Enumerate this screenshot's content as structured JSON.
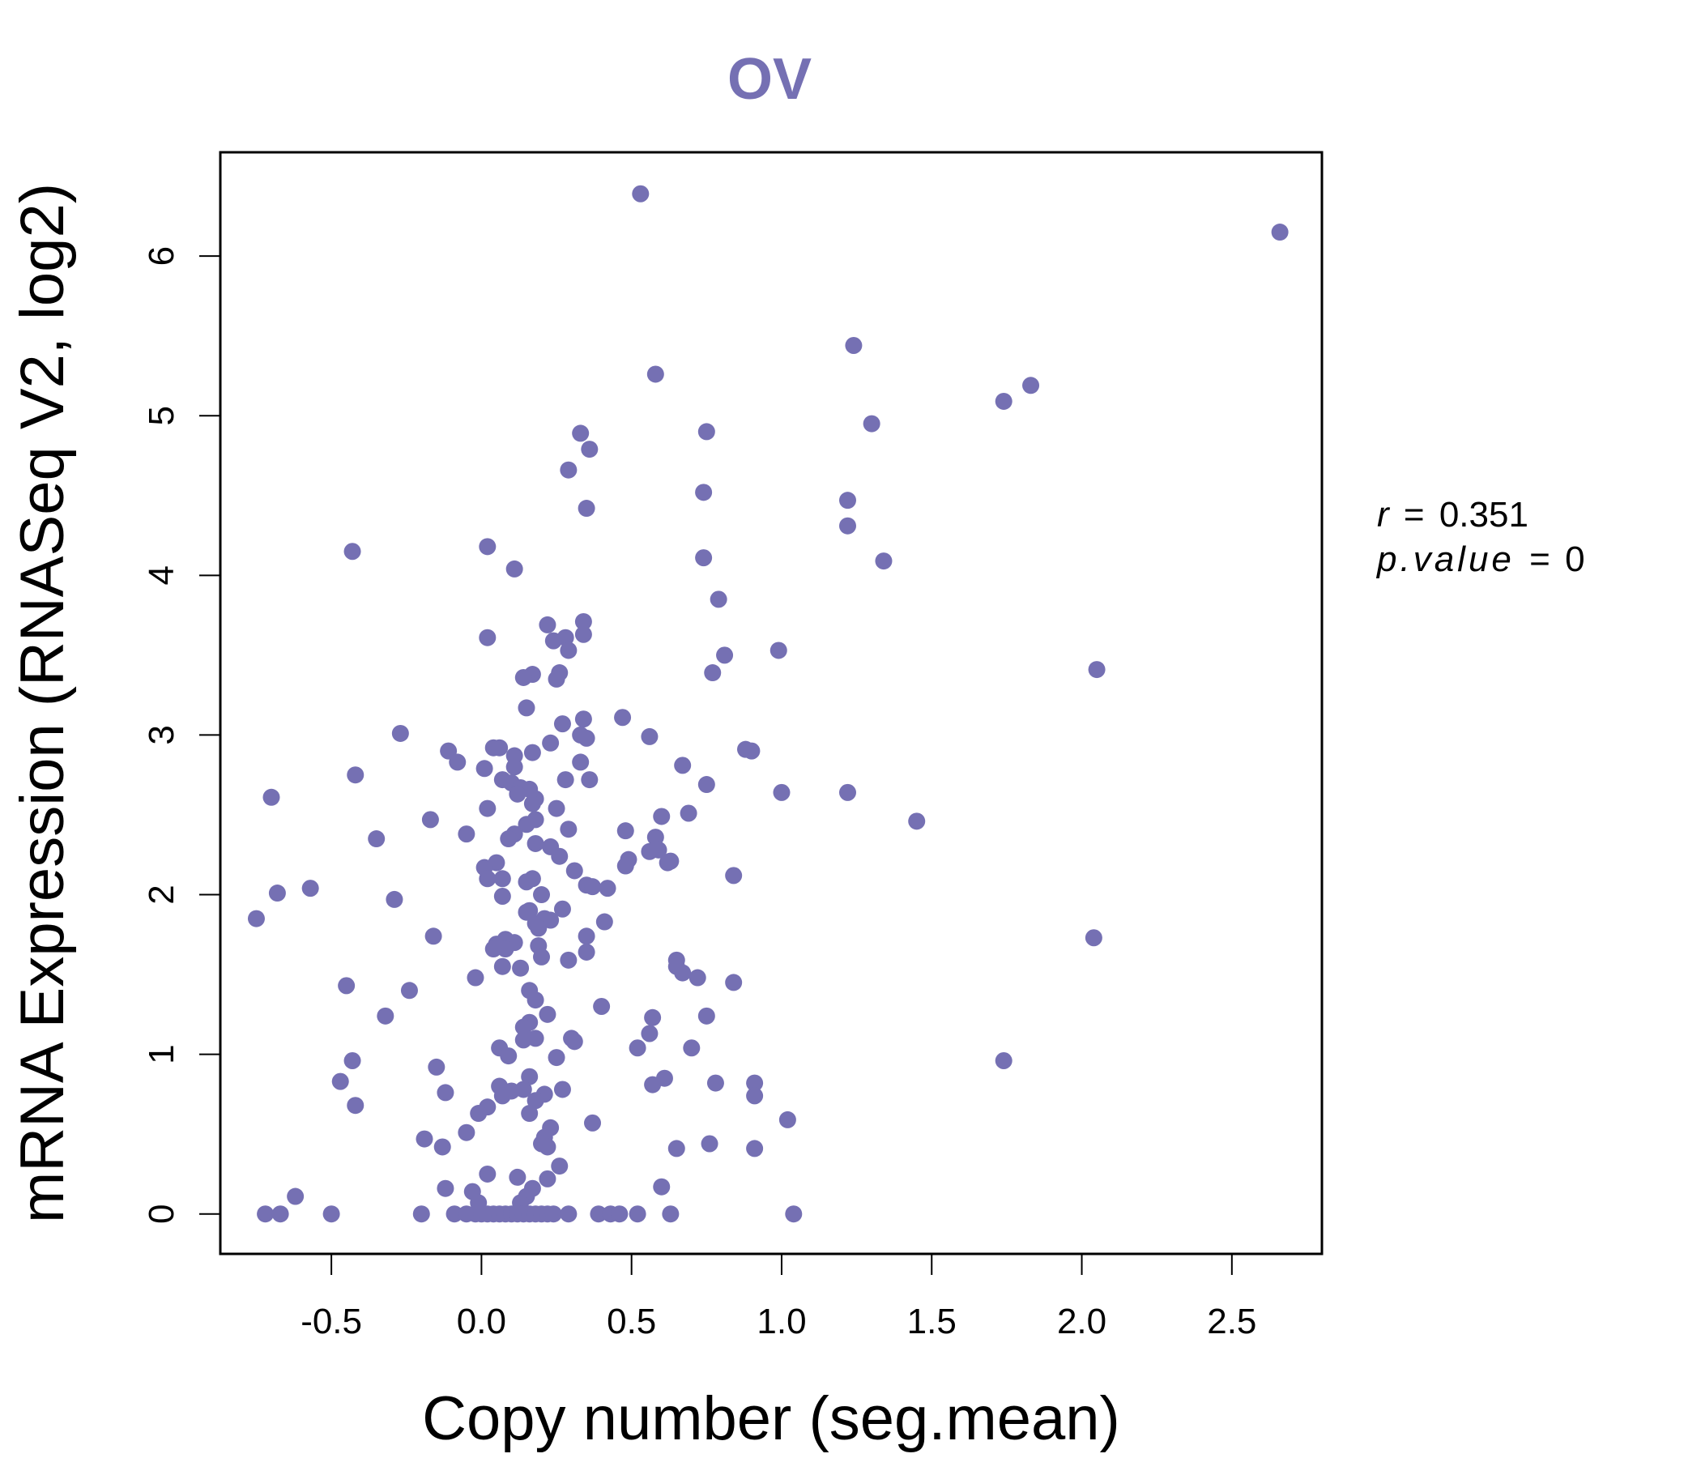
{
  "chart_data": {
    "type": "scatter",
    "title": "OV",
    "xlabel": "Copy number (seg.mean)",
    "ylabel": "mRNA Expression (RNASeq V2, log2)",
    "xlim": [
      -0.87,
      2.8
    ],
    "ylim": [
      -0.25,
      6.65
    ],
    "xticks": [
      -0.5,
      0.0,
      0.5,
      1.0,
      1.5,
      2.0,
      2.5
    ],
    "xtick_labels": [
      "-0.5",
      "0.0",
      "0.5",
      "1.0",
      "1.5",
      "2.0",
      "2.5"
    ],
    "yticks": [
      0,
      1,
      2,
      3,
      4,
      5,
      6
    ],
    "ytick_labels": [
      "0",
      "1",
      "2",
      "3",
      "4",
      "5",
      "6"
    ],
    "grid": false,
    "color": "#7570b3",
    "annotations": {
      "r_label": "r",
      "r_value": "0.351",
      "p_label": "p.value",
      "p_value": "0"
    },
    "series": [
      {
        "name": "samples",
        "points": [
          [
            0.53,
            6.39
          ],
          [
            2.66,
            6.15
          ],
          [
            1.24,
            5.44
          ],
          [
            0.58,
            5.26
          ],
          [
            1.83,
            5.19
          ],
          [
            1.74,
            5.09
          ],
          [
            1.3,
            4.95
          ],
          [
            0.33,
            4.89
          ],
          [
            0.75,
            4.9
          ],
          [
            0.36,
            4.79
          ],
          [
            0.29,
            4.66
          ],
          [
            0.74,
            4.52
          ],
          [
            1.22,
            4.47
          ],
          [
            0.35,
            4.42
          ],
          [
            1.22,
            4.31
          ],
          [
            -0.43,
            4.15
          ],
          [
            0.02,
            4.18
          ],
          [
            0.74,
            4.11
          ],
          [
            1.34,
            4.09
          ],
          [
            0.11,
            4.04
          ],
          [
            0.79,
            3.85
          ],
          [
            0.34,
            3.71
          ],
          [
            0.22,
            3.69
          ],
          [
            0.34,
            3.63
          ],
          [
            0.28,
            3.61
          ],
          [
            0.02,
            3.61
          ],
          [
            0.24,
            3.59
          ],
          [
            0.99,
            3.53
          ],
          [
            0.29,
            3.53
          ],
          [
            0.81,
            3.5
          ],
          [
            2.05,
            3.41
          ],
          [
            0.77,
            3.39
          ],
          [
            0.26,
            3.39
          ],
          [
            0.17,
            3.38
          ],
          [
            0.14,
            3.36
          ],
          [
            0.25,
            3.35
          ],
          [
            0.15,
            3.17
          ],
          [
            0.47,
            3.11
          ],
          [
            0.34,
            3.1
          ],
          [
            0.27,
            3.07
          ],
          [
            -0.27,
            3.01
          ],
          [
            0.56,
            2.99
          ],
          [
            0.33,
            3.0
          ],
          [
            0.35,
            2.98
          ],
          [
            0.23,
            2.95
          ],
          [
            0.04,
            2.92
          ],
          [
            0.06,
            2.92
          ],
          [
            -0.11,
            2.9
          ],
          [
            0.17,
            2.89
          ],
          [
            0.88,
            2.91
          ],
          [
            0.9,
            2.9
          ],
          [
            0.11,
            2.87
          ],
          [
            -0.08,
            2.83
          ],
          [
            0.33,
            2.83
          ],
          [
            0.67,
            2.81
          ],
          [
            0.11,
            2.8
          ],
          [
            0.01,
            2.79
          ],
          [
            -0.42,
            2.75
          ],
          [
            0.36,
            2.72
          ],
          [
            0.28,
            2.72
          ],
          [
            0.07,
            2.72
          ],
          [
            0.1,
            2.7
          ],
          [
            0.75,
            2.69
          ],
          [
            0.13,
            2.67
          ],
          [
            0.16,
            2.66
          ],
          [
            1.0,
            2.64
          ],
          [
            1.22,
            2.64
          ],
          [
            0.12,
            2.63
          ],
          [
            -0.7,
            2.61
          ],
          [
            0.18,
            2.6
          ],
          [
            0.17,
            2.57
          ],
          [
            0.25,
            2.54
          ],
          [
            0.02,
            2.54
          ],
          [
            0.69,
            2.51
          ],
          [
            0.6,
            2.49
          ],
          [
            1.45,
            2.46
          ],
          [
            0.18,
            2.47
          ],
          [
            -0.17,
            2.47
          ],
          [
            0.15,
            2.44
          ],
          [
            0.48,
            2.4
          ],
          [
            0.29,
            2.41
          ],
          [
            -0.05,
            2.38
          ],
          [
            0.11,
            2.38
          ],
          [
            0.58,
            2.36
          ],
          [
            -0.35,
            2.35
          ],
          [
            0.09,
            2.35
          ],
          [
            0.18,
            2.32
          ],
          [
            0.23,
            2.3
          ],
          [
            0.59,
            2.28
          ],
          [
            0.56,
            2.27
          ],
          [
            0.26,
            2.24
          ],
          [
            0.49,
            2.22
          ],
          [
            0.63,
            2.21
          ],
          [
            0.62,
            2.2
          ],
          [
            0.05,
            2.2
          ],
          [
            0.48,
            2.18
          ],
          [
            0.01,
            2.17
          ],
          [
            0.31,
            2.15
          ],
          [
            0.84,
            2.12
          ],
          [
            0.17,
            2.1
          ],
          [
            0.07,
            2.1
          ],
          [
            0.02,
            2.1
          ],
          [
            0.15,
            2.08
          ],
          [
            0.35,
            2.06
          ],
          [
            0.37,
            2.05
          ],
          [
            -0.57,
            2.04
          ],
          [
            0.42,
            2.04
          ],
          [
            -0.68,
            2.01
          ],
          [
            0.2,
            2.0
          ],
          [
            0.07,
            1.99
          ],
          [
            -0.29,
            1.97
          ],
          [
            0.27,
            1.91
          ],
          [
            0.16,
            1.9
          ],
          [
            0.15,
            1.89
          ],
          [
            0.21,
            1.85
          ],
          [
            -0.75,
            1.85
          ],
          [
            0.41,
            1.83
          ],
          [
            0.23,
            1.84
          ],
          [
            0.18,
            1.82
          ],
          [
            0.19,
            1.79
          ],
          [
            0.35,
            1.74
          ],
          [
            -0.16,
            1.74
          ],
          [
            2.04,
            1.73
          ],
          [
            0.08,
            1.72
          ],
          [
            0.11,
            1.7
          ],
          [
            0.05,
            1.69
          ],
          [
            0.19,
            1.68
          ],
          [
            0.08,
            1.66
          ],
          [
            0.04,
            1.66
          ],
          [
            0.35,
            1.64
          ],
          [
            0.2,
            1.61
          ],
          [
            0.65,
            1.59
          ],
          [
            0.29,
            1.59
          ],
          [
            0.65,
            1.55
          ],
          [
            0.07,
            1.55
          ],
          [
            0.13,
            1.54
          ],
          [
            0.67,
            1.51
          ],
          [
            0.72,
            1.48
          ],
          [
            -0.02,
            1.48
          ],
          [
            0.84,
            1.45
          ],
          [
            -0.45,
            1.43
          ],
          [
            -0.24,
            1.4
          ],
          [
            0.16,
            1.4
          ],
          [
            0.18,
            1.34
          ],
          [
            0.4,
            1.3
          ],
          [
            0.22,
            1.25
          ],
          [
            -0.32,
            1.24
          ],
          [
            0.75,
            1.24
          ],
          [
            0.57,
            1.23
          ],
          [
            0.16,
            1.2
          ],
          [
            0.14,
            1.17
          ],
          [
            0.56,
            1.13
          ],
          [
            0.3,
            1.1
          ],
          [
            0.18,
            1.1
          ],
          [
            0.14,
            1.09
          ],
          [
            0.31,
            1.08
          ],
          [
            0.7,
            1.04
          ],
          [
            0.52,
            1.04
          ],
          [
            0.06,
            1.04
          ],
          [
            0.09,
            0.99
          ],
          [
            0.25,
            0.98
          ],
          [
            -0.43,
            0.96
          ],
          [
            1.74,
            0.96
          ],
          [
            -0.15,
            0.92
          ],
          [
            0.16,
            0.86
          ],
          [
            0.61,
            0.85
          ],
          [
            -0.47,
            0.83
          ],
          [
            0.91,
            0.82
          ],
          [
            0.78,
            0.82
          ],
          [
            0.57,
            0.81
          ],
          [
            0.06,
            0.8
          ],
          [
            0.27,
            0.78
          ],
          [
            0.14,
            0.78
          ],
          [
            0.1,
            0.77
          ],
          [
            -0.12,
            0.76
          ],
          [
            0.21,
            0.75
          ],
          [
            0.07,
            0.74
          ],
          [
            0.91,
            0.74
          ],
          [
            0.18,
            0.71
          ],
          [
            -0.42,
            0.68
          ],
          [
            0.02,
            0.67
          ],
          [
            0.16,
            0.63
          ],
          [
            -0.01,
            0.63
          ],
          [
            1.02,
            0.59
          ],
          [
            0.37,
            0.57
          ],
          [
            0.23,
            0.54
          ],
          [
            -0.05,
            0.51
          ],
          [
            0.21,
            0.48
          ],
          [
            -0.19,
            0.47
          ],
          [
            0.2,
            0.44
          ],
          [
            0.76,
            0.44
          ],
          [
            -0.13,
            0.42
          ],
          [
            0.22,
            0.42
          ],
          [
            0.91,
            0.41
          ],
          [
            0.65,
            0.41
          ],
          [
            0.26,
            0.3
          ],
          [
            0.02,
            0.25
          ],
          [
            0.12,
            0.23
          ],
          [
            0.22,
            0.22
          ],
          [
            0.6,
            0.17
          ],
          [
            -0.12,
            0.16
          ],
          [
            0.17,
            0.16
          ],
          [
            0.15,
            0.11
          ],
          [
            -0.62,
            0.11
          ],
          [
            -0.03,
            0.14
          ],
          [
            -0.01,
            0.07
          ],
          [
            0.13,
            0.07
          ],
          [
            -0.72,
            0.0
          ],
          [
            -0.67,
            0.0
          ],
          [
            -0.5,
            0.0
          ],
          [
            -0.2,
            0.0
          ],
          [
            -0.09,
            0.0
          ],
          [
            -0.05,
            0.0
          ],
          [
            -0.02,
            0.0
          ],
          [
            0.0,
            0.0
          ],
          [
            0.02,
            0.0
          ],
          [
            0.04,
            0.0
          ],
          [
            0.06,
            0.0
          ],
          [
            0.08,
            0.0
          ],
          [
            0.1,
            0.0
          ],
          [
            0.12,
            0.0
          ],
          [
            0.14,
            0.0
          ],
          [
            0.16,
            0.0
          ],
          [
            0.18,
            0.0
          ],
          [
            0.2,
            0.0
          ],
          [
            0.22,
            0.0
          ],
          [
            0.24,
            0.0
          ],
          [
            0.29,
            0.0
          ],
          [
            0.39,
            0.0
          ],
          [
            0.43,
            0.0
          ],
          [
            0.46,
            0.0
          ],
          [
            0.52,
            0.0
          ],
          [
            0.63,
            0.0
          ],
          [
            1.04,
            0.0
          ]
        ]
      }
    ]
  }
}
